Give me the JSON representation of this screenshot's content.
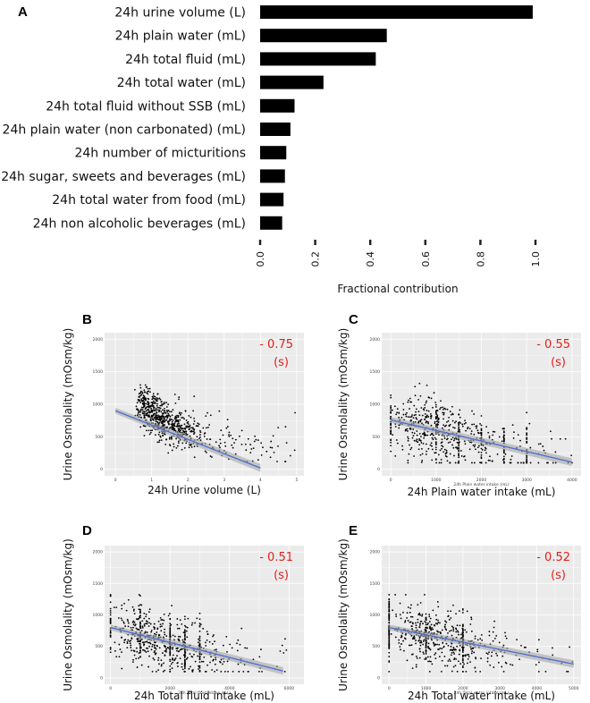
{
  "chart_data": [
    {
      "panel": "A",
      "type": "bar",
      "orientation": "horizontal",
      "xlabel": "Fractional contribution",
      "xlim": [
        0,
        1.05
      ],
      "xticks": [
        "0.0",
        "0.2",
        "0.4",
        "0.6",
        "0.8",
        "1.0"
      ],
      "categories": [
        "24h urine volume (L)",
        "24h plain water (mL)",
        "24h total fluid (mL)",
        "24h total water (mL)",
        "24h total fluid without SSB (mL)",
        "24h plain water (non carbonated) (mL)",
        "24h number of micturitions",
        "24h sugar, sweets and beverages (mL)",
        "24h total water from food (mL)",
        "24h non alcoholic beverages (mL)"
      ],
      "values": [
        0.99,
        0.46,
        0.42,
        0.23,
        0.125,
        0.11,
        0.095,
        0.09,
        0.085,
        0.08
      ],
      "bar_color": "#000000"
    },
    {
      "panel": "B",
      "type": "scatter",
      "xlabel": "24h Urine volume (L)",
      "ylabel": "Urine Osmolality (mOsm/kg)",
      "xlim": [
        -0.3,
        5.2
      ],
      "ylim": [
        -100,
        2100
      ],
      "xticks": [
        "0",
        "1",
        "2",
        "3",
        "4",
        "5"
      ],
      "yticks": [
        "0",
        "500",
        "1000",
        "1500",
        "2000"
      ],
      "correlation": "- 0.75",
      "correlation_note": "(s)",
      "fit": {
        "x": [
          0,
          4
        ],
        "y": [
          900,
          20
        ]
      },
      "gen": {
        "kind": "inverse",
        "n": 700,
        "seed": 11
      }
    },
    {
      "panel": "C",
      "type": "scatter",
      "xlabel": "24h Plain water intake (mL)",
      "xlabel_small": "24h Plain water intake (mL)",
      "ylabel": "Urine Osmolality (mOsm/kg)",
      "xlim": [
        -200,
        4200
      ],
      "ylim": [
        -100,
        2100
      ],
      "xticks": [
        "0",
        "1000",
        "2000",
        "3000",
        "4000"
      ],
      "yticks": [
        "0",
        "500",
        "1000",
        "1500",
        "2000"
      ],
      "correlation": "- 0.55",
      "correlation_note": "(s)",
      "fit": {
        "x": [
          0,
          4000
        ],
        "y": [
          760,
          110
        ]
      },
      "gen": {
        "kind": "linear",
        "n": 650,
        "seed": 23,
        "xmax": 4000,
        "a": 760,
        "b": -0.16,
        "stripes": [
          0,
          1000,
          1500,
          2000,
          2500,
          3000
        ]
      }
    },
    {
      "panel": "D",
      "type": "scatter",
      "xlabel": "24h Total fluid intake (mL)",
      "xlabel_small": "24h Total fluid intake (mL)",
      "ylabel": "Urine Osmolality (mOsm/kg)",
      "xlim": [
        -200,
        6500
      ],
      "ylim": [
        -100,
        2100
      ],
      "xticks": [
        "0",
        "2000",
        "4000",
        "6000"
      ],
      "yticks": [
        "0",
        "500",
        "1000",
        "1500",
        "2000"
      ],
      "correlation": "- 0.51",
      "correlation_note": "(s)",
      "fit": {
        "x": [
          0,
          5800
        ],
        "y": [
          800,
          110
        ]
      },
      "gen": {
        "kind": "linear",
        "n": 650,
        "seed": 37,
        "xmax": 6000,
        "a": 800,
        "b": -0.12,
        "stripes": [
          0,
          1000,
          2000,
          2500,
          3000
        ]
      }
    },
    {
      "panel": "E",
      "type": "scatter",
      "xlabel": "24h Total water intake (mL)",
      "xlabel_small": "24h Total water intake (mL)",
      "ylabel": "Urine Osmolality (mOsm/kg)",
      "xlim": [
        -200,
        5200
      ],
      "ylim": [
        -100,
        2100
      ],
      "xticks": [
        "0",
        "1000",
        "2000",
        "3000",
        "4000",
        "5000"
      ],
      "yticks": [
        "0",
        "500",
        "1000",
        "1500",
        "2000"
      ],
      "correlation": "- 0.52",
      "correlation_note": "(s)",
      "fit": {
        "x": [
          0,
          5000
        ],
        "y": [
          800,
          220
        ]
      },
      "gen": {
        "kind": "linear",
        "n": 650,
        "seed": 53,
        "xmax": 5000,
        "a": 800,
        "b": -0.12,
        "stripes": [
          0,
          1000,
          2000
        ]
      }
    }
  ],
  "colors": {
    "bar": "#000000",
    "panel_bg": "#ebebeb",
    "grid": "#ffffff",
    "point": "#000000",
    "fit_line": "#4a6fd1",
    "fit_band": "#a7a7a7",
    "correlation": "#e0211d"
  }
}
